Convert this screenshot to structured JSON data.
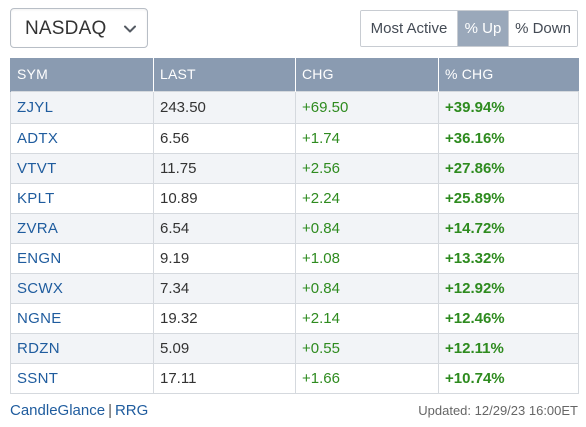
{
  "exchange": {
    "selected": "NASDAQ"
  },
  "filters": {
    "most_active": "Most Active",
    "up": "% Up",
    "down": "% Down",
    "active": "up"
  },
  "table": {
    "headers": [
      "SYM",
      "LAST",
      "CHG",
      "% CHG"
    ],
    "rows": [
      {
        "sym": "ZJYL",
        "last": "243.50",
        "chg": "+69.50",
        "pct": "+39.94%"
      },
      {
        "sym": "ADTX",
        "last": "6.56",
        "chg": "+1.74",
        "pct": "+36.16%"
      },
      {
        "sym": "VTVT",
        "last": "11.75",
        "chg": "+2.56",
        "pct": "+27.86%"
      },
      {
        "sym": "KPLT",
        "last": "10.89",
        "chg": "+2.24",
        "pct": "+25.89%"
      },
      {
        "sym": "ZVRA",
        "last": "6.54",
        "chg": "+0.84",
        "pct": "+14.72%"
      },
      {
        "sym": "ENGN",
        "last": "9.19",
        "chg": "+1.08",
        "pct": "+13.32%"
      },
      {
        "sym": "SCWX",
        "last": "7.34",
        "chg": "+0.84",
        "pct": "+12.92%"
      },
      {
        "sym": "NGNE",
        "last": "19.32",
        "chg": "+2.14",
        "pct": "+12.46%"
      },
      {
        "sym": "RDZN",
        "last": "5.09",
        "chg": "+0.55",
        "pct": "+12.11%"
      },
      {
        "sym": "SSNT",
        "last": "17.11",
        "chg": "+1.66",
        "pct": "+10.74%"
      }
    ]
  },
  "footer": {
    "candleglance": "CandleGlance",
    "separator": "|",
    "rrg": "RRG",
    "updated": "Updated: 12/29/23 16:00ET"
  },
  "colors": {
    "header_bg": "#8a9bb1",
    "active_filter_bg": "#9aa8ba",
    "link": "#1f5c9e",
    "positive": "#2e8b1f",
    "row_alt": "#f2f4f7"
  },
  "icons": {
    "exchange_select": "chevron-down-icon"
  }
}
